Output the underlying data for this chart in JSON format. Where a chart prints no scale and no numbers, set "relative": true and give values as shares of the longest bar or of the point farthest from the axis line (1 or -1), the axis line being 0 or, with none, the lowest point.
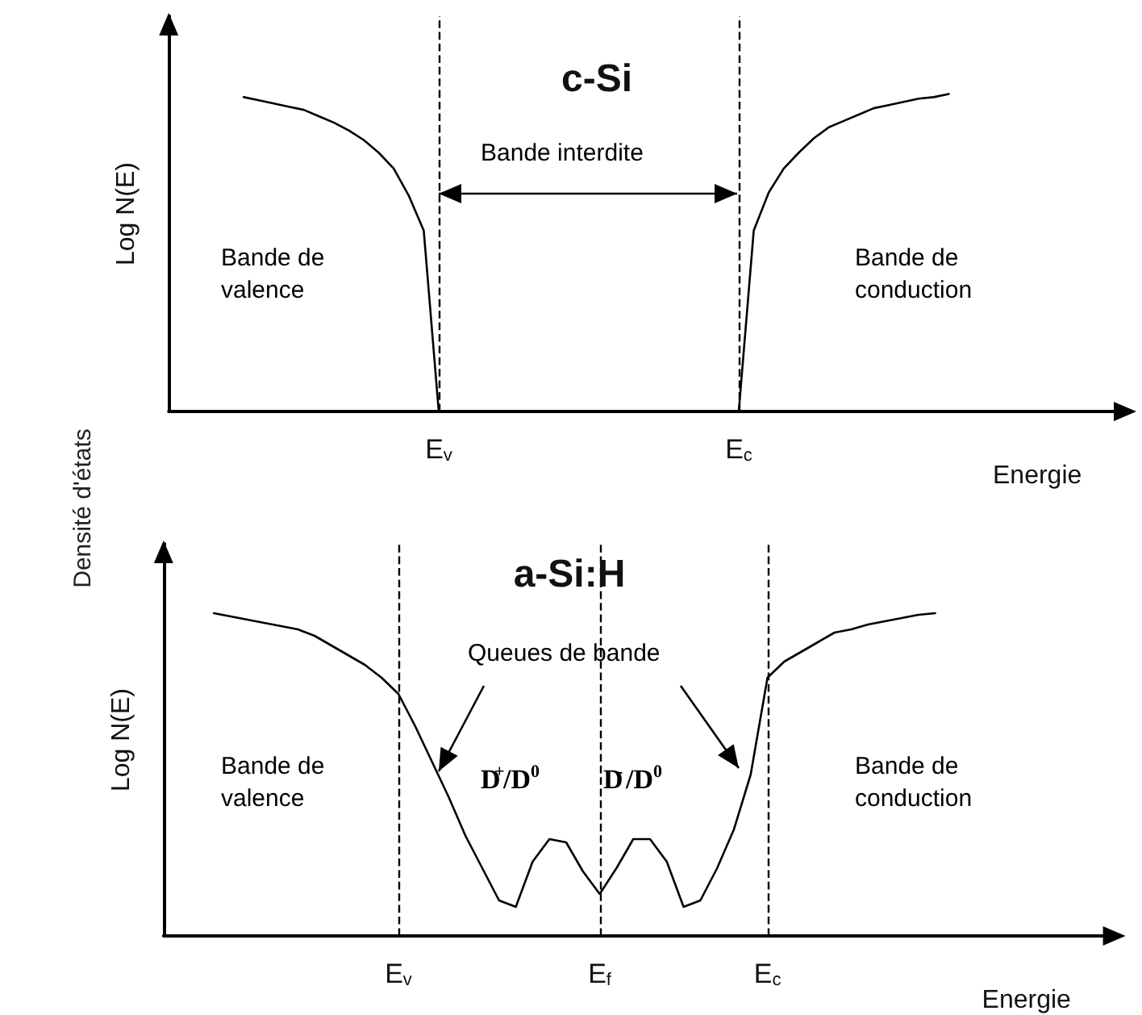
{
  "chart_data": [
    {
      "type": "line",
      "title": "c-Si",
      "xlabel": "Energie",
      "ylabel": "Log N(E)",
      "relative": true,
      "marker": "none",
      "line_style": "solid",
      "categories": [
        null,
        null,
        null,
        null,
        null,
        null,
        null,
        null,
        null,
        null,
        null,
        null,
        null,
        null,
        null,
        null,
        null,
        null,
        "E$_{v}$",
        null,
        null,
        null,
        null,
        null,
        null,
        null,
        null,
        null,
        null,
        null,
        null,
        null,
        null,
        null,
        null,
        null,
        null,
        null,
        "E$_{c}$",
        null,
        null,
        null,
        null,
        null,
        null,
        null,
        null,
        null,
        null,
        null,
        null,
        null,
        null,
        null,
        null,
        null,
        null,
        null,
        null,
        null,
        null,
        null,
        null,
        null
      ],
      "series": [
        {
          "color": "#000000",
          "values": [
            null,
            null,
            null,
            null,
            null,
            0.99,
            0.98,
            0.97,
            0.96,
            0.95,
            0.93,
            0.91,
            0.885,
            0.855,
            0.815,
            0.765,
            0.68,
            0.57,
            0,
            null,
            null,
            null,
            null,
            null,
            null,
            null,
            null,
            null,
            null,
            null,
            null,
            null,
            null,
            null,
            null,
            null,
            null,
            null,
            null,
            null,
            null,
            null,
            null,
            null,
            null,
            null,
            null,
            null,
            null,
            null,
            null,
            null,
            null,
            null,
            null,
            null,
            null,
            null,
            null,
            null,
            null,
            null,
            null,
            null
          ]
        },
        {
          "color": "#000000",
          "values": [
            null,
            null,
            null,
            null,
            null,
            null,
            null,
            null,
            null,
            null,
            null,
            null,
            null,
            null,
            null,
            null,
            null,
            null,
            null,
            null,
            null,
            null,
            null,
            null,
            null,
            null,
            null,
            null,
            null,
            null,
            null,
            null,
            null,
            null,
            null,
            null,
            null,
            null,
            0,
            0.57,
            0.69,
            0.765,
            0.815,
            0.86,
            0.895,
            0.915,
            0.935,
            0.955,
            0.965,
            0.975,
            0.985,
            0.99,
            1.0,
            null,
            null,
            null,
            null,
            null,
            null,
            null,
            null,
            null,
            null,
            null
          ]
        }
      ],
      "ref_lines": [
        {
          "axis": "x",
          "value": "E$_{v}$",
          "line_style": "dashed",
          "color": "#000000"
        },
        {
          "axis": "x",
          "value": "E$_{c}$",
          "line_style": "dashed",
          "color": "#000000"
        }
      ],
      "annotations": [
        "Densité d'états",
        "Bande de valence",
        "Bande interdite",
        "Bande de conduction"
      ]
    },
    {
      "type": "line",
      "title": "a-Si:H",
      "xlabel": "Energie",
      "ylabel": "Log N(E)",
      "relative": true,
      "marker": "none",
      "line_style": "solid",
      "categories": [
        null,
        null,
        null,
        null,
        null,
        null,
        null,
        null,
        null,
        null,
        null,
        null,
        null,
        null,
        "E$_{v}$",
        null,
        null,
        null,
        null,
        null,
        null,
        null,
        null,
        null,
        null,
        null,
        "E$_{f}$",
        null,
        null,
        null,
        null,
        null,
        null,
        null,
        null,
        null,
        "E$_{c}$",
        null,
        null,
        null,
        null,
        null,
        null,
        null,
        null,
        null,
        null,
        null,
        null,
        null,
        null,
        null,
        null,
        null,
        null,
        null,
        null
      ],
      "series": [
        {
          "color": "#000000",
          "values": [
            null,
            null,
            null,
            1.0,
            0.99,
            0.98,
            0.97,
            0.96,
            0.95,
            0.93,
            0.9,
            0.87,
            0.84,
            0.8,
            0.75,
            0.65,
            0.54,
            0.43,
            0.31,
            0.21,
            0.11,
            0.09,
            0.23,
            0.3,
            0.29,
            0.2,
            0.13,
            0.21,
            0.3,
            0.3,
            0.23,
            0.09,
            0.11,
            0.21,
            0.33,
            0.5,
            0.8,
            0.85,
            0.88,
            0.91,
            0.94,
            0.95,
            0.965,
            0.975,
            0.985,
            0.995,
            1.0,
            null,
            null,
            null,
            null,
            null,
            null,
            null,
            null,
            null,
            null
          ]
        }
      ],
      "ref_lines": [
        {
          "axis": "x",
          "value": "E$_{v}$",
          "line_style": "dashed",
          "color": "#000000"
        },
        {
          "axis": "x",
          "value": "E$_{f}$",
          "line_style": "dashed",
          "color": "#000000"
        },
        {
          "axis": "x",
          "value": "E$_{c}$",
          "line_style": "dashed",
          "color": "#000000"
        }
      ],
      "annotations": [
        "Bande de valence",
        "Queues de bande",
        "D$^{+}$/D$^{0}$",
        "D$^{-}$/D$^{0}$",
        "Bande de conduction"
      ]
    }
  ]
}
